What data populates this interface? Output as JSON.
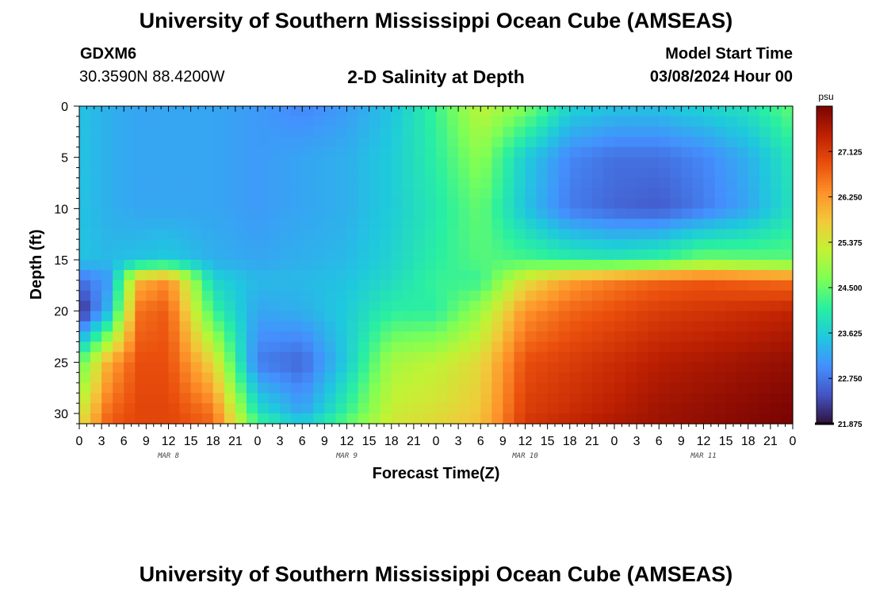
{
  "header": {
    "title": "University of Southern Mississippi Ocean Cube (AMSEAS)",
    "station_id": "GDXM6",
    "coordinates": "30.3590N  88.4200W",
    "plot_title": "2-D Salinity at Depth",
    "model_start_label": "Model Start Time",
    "model_start_value": "03/08/2024 Hour 00"
  },
  "footer": {
    "title": "University of Southern Mississippi Ocean Cube (AMSEAS)"
  },
  "chart_data": {
    "type": "heatmap",
    "title": "2-D Salinity at Depth",
    "xlabel": "Forecast Time(Z)",
    "ylabel": "Depth (ft)",
    "x_tick_labels": [
      "0",
      "3",
      "6",
      "9",
      "12",
      "15",
      "18",
      "21",
      "0",
      "3",
      "6",
      "9",
      "12",
      "15",
      "18",
      "21",
      "0",
      "3",
      "6",
      "9",
      "12",
      "15",
      "18",
      "21",
      "0",
      "3",
      "6",
      "9",
      "12",
      "15",
      "18",
      "21",
      "0"
    ],
    "x_day_labels": [
      {
        "label": "MAR 8",
        "hour": 12
      },
      {
        "label": "MAR 9",
        "hour": 36
      },
      {
        "label": "MAR 10",
        "hour": 60
      },
      {
        "label": "MAR 11",
        "hour": 84
      }
    ],
    "xlim_hours": [
      0,
      96
    ],
    "y_ticks": [
      0,
      5,
      10,
      15,
      20,
      25,
      30
    ],
    "ylim_ft": [
      0,
      31
    ],
    "y_inverted": true,
    "colorbar": {
      "unit": "psu",
      "min": 21.875,
      "max": 28.0,
      "ticks": [
        "27.125",
        "26.250",
        "25.375",
        "24.500",
        "23.625",
        "22.750",
        "21.875"
      ],
      "colors": [
        "#30123b",
        "#4454c4",
        "#4490fe",
        "#1fc8de",
        "#29efa2",
        "#7dff56",
        "#c1f334",
        "#f1ca3a",
        "#fe922a",
        "#ea4f0d",
        "#be2102",
        "#7a0403"
      ]
    },
    "depths_ft": [
      0,
      5,
      10,
      15,
      17,
      20,
      25,
      30,
      31
    ],
    "hours": [
      0,
      4,
      8,
      12,
      18,
      24,
      30,
      36,
      42,
      48,
      54,
      60,
      66,
      72,
      78,
      84,
      90,
      96
    ],
    "salinity_psu": [
      [
        23.5,
        23.3,
        23.2,
        23.2,
        23.2,
        23.1,
        22.9,
        23.1,
        23.5,
        24.2,
        25.2,
        24.7,
        23.7,
        23.5,
        23.5,
        23.7,
        23.9,
        24.5
      ],
      [
        23.5,
        23.3,
        23.2,
        23.2,
        23.2,
        23.1,
        23.2,
        23.3,
        23.6,
        24.1,
        24.8,
        23.6,
        22.9,
        22.7,
        22.7,
        22.9,
        23.3,
        24.0
      ],
      [
        23.5,
        23.3,
        23.2,
        23.2,
        23.2,
        23.1,
        23.2,
        23.3,
        23.6,
        24.0,
        24.5,
        23.5,
        22.8,
        22.6,
        22.5,
        22.8,
        23.2,
        23.9
      ],
      [
        23.5,
        23.4,
        23.5,
        23.6,
        23.3,
        23.2,
        23.3,
        23.4,
        23.7,
        24.1,
        24.4,
        24.3,
        24.1,
        24.0,
        24.2,
        24.6,
        24.5,
        24.4
      ],
      [
        22.7,
        23.1,
        26.0,
        26.4,
        23.7,
        23.4,
        23.4,
        23.5,
        23.8,
        24.2,
        24.2,
        25.5,
        26.2,
        26.5,
        26.7,
        26.8,
        26.7,
        26.6
      ],
      [
        22.0,
        23.4,
        26.6,
        26.8,
        24.2,
        23.2,
        23.3,
        23.6,
        24.1,
        24.1,
        24.9,
        26.3,
        26.7,
        26.9,
        27.1,
        27.2,
        27.3,
        27.4
      ],
      [
        24.4,
        26.1,
        26.9,
        26.9,
        25.6,
        22.8,
        22.6,
        23.6,
        25.0,
        25.2,
        25.6,
        26.9,
        27.1,
        27.3,
        27.5,
        27.6,
        27.7,
        27.8
      ],
      [
        25.3,
        26.7,
        27.0,
        27.0,
        26.6,
        23.9,
        23.2,
        24.2,
        25.3,
        25.5,
        25.8,
        27.1,
        27.3,
        27.5,
        27.7,
        27.8,
        27.9,
        28.0
      ],
      [
        25.5,
        26.8,
        27.0,
        27.0,
        26.7,
        24.3,
        23.7,
        24.5,
        25.4,
        25.6,
        25.9,
        27.2,
        27.4,
        27.6,
        27.7,
        27.8,
        27.9,
        28.0
      ]
    ]
  }
}
